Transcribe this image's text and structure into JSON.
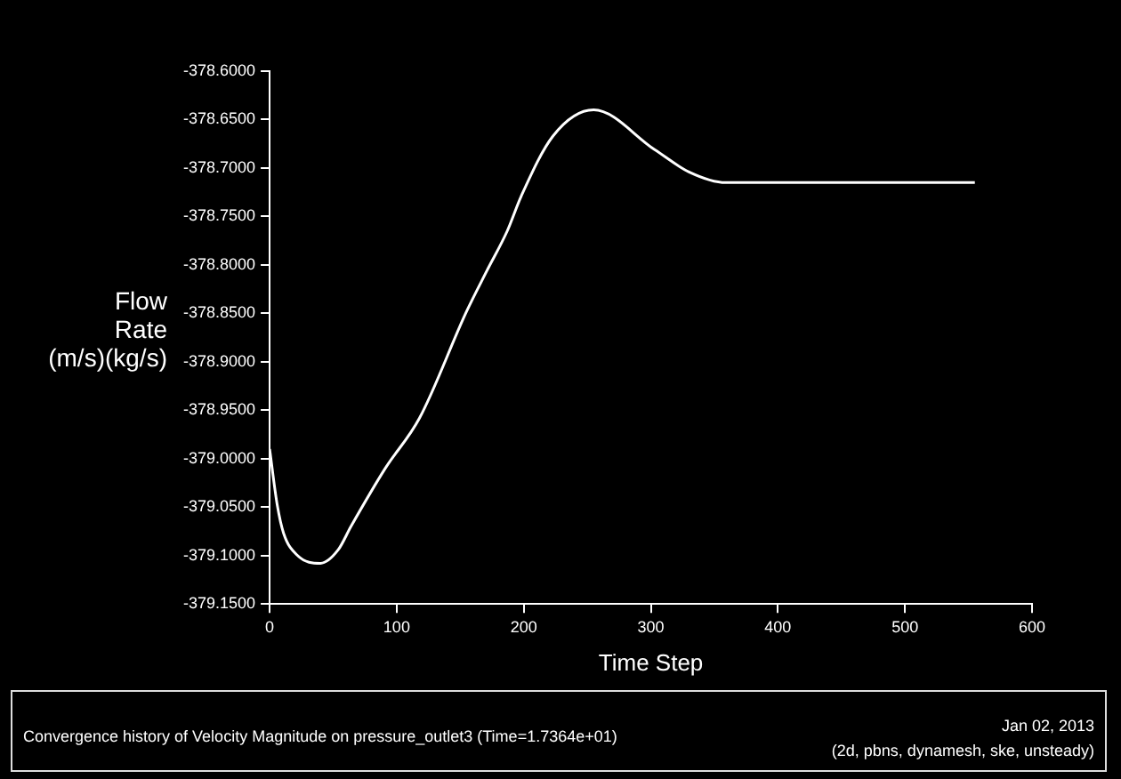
{
  "chart_data": {
    "type": "line",
    "xlabel": "Time Step",
    "ylabel": "Flow Rate (m/s)(kg/s)",
    "annotations": [
      "Convergence history of Velocity Magnitude on pressure_outlet3  (Time=1.7364e+01)",
      "Jan 02, 2013",
      "(2d, pbns, dynamesh, ske, unsteady)"
    ],
    "series": [
      {
        "color": "#ffffff",
        "x": [
          0,
          6,
          11,
          22,
          40,
          54,
          64,
          91,
          118,
          155,
          171,
          187,
          198,
          223,
          255,
          303,
          330,
          359,
          555
        ],
        "values": [
          -378.99,
          -379.048,
          -379.077,
          -379.1,
          -379.108,
          -379.094,
          -379.07,
          -379.01,
          -378.958,
          -378.848,
          -378.806,
          -378.765,
          -378.729,
          -378.667,
          -378.64,
          -378.681,
          -378.704,
          -378.715,
          -378.715
        ]
      }
    ],
    "xlim": [
      0,
      600
    ],
    "xticks": [
      0,
      100,
      200,
      300,
      400,
      500,
      600
    ],
    "ylim": [
      -379.15,
      -378.6
    ],
    "yticks": [
      {
        "value": -379.15,
        "label": "-379.1500"
      },
      {
        "value": -379.1,
        "label": "-379.1000"
      },
      {
        "value": -379.05,
        "label": "-379.0500"
      },
      {
        "value": -379.0,
        "label": "-379.0000"
      },
      {
        "value": -378.95,
        "label": "-378.9500"
      },
      {
        "value": -378.9,
        "label": "-378.9000"
      },
      {
        "value": -378.85,
        "label": "-378.8500"
      },
      {
        "value": -378.8,
        "label": "-378.8000"
      },
      {
        "value": -378.75,
        "label": "-378.7500"
      },
      {
        "value": -378.7,
        "label": "-378.7000"
      },
      {
        "value": -378.65,
        "label": "-378.6500"
      },
      {
        "value": -378.6,
        "label": "-378.6000"
      }
    ],
    "grid": false,
    "legend": false,
    "marker": "none",
    "line_style": "solid"
  }
}
